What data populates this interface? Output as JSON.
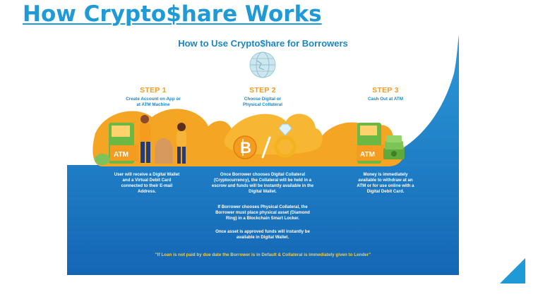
{
  "slide": {
    "title": "How Crypto$hare Works"
  },
  "infographic": {
    "title": "How to Use Crypto$hare for Borrowers",
    "steps": [
      {
        "label": "STEP 1",
        "subtitle_line1": "Create Account on App or",
        "subtitle_line2": "at ATM Machine",
        "description": [
          "User will receive a Digital Wallet",
          "and a Virtual Debit Card",
          "connected to their E-mail",
          "Address."
        ],
        "atm_label": "ATM"
      },
      {
        "label": "STEP 2",
        "subtitle_line1": "Choose Digital or",
        "subtitle_line2": "Physical Collateral",
        "description_a": [
          "Once Borrower chooses Digital Collateral",
          "(Cryptocurrency), the Collateral will be held in a",
          "escrow and funds will be instantly available in the",
          "Digital Wallet."
        ],
        "description_b": [
          "If Borrower chooses Physical Collateral, the",
          "Borrower must place physical asset (Diamond",
          "Ring) in a Blockchain Smart Locker."
        ],
        "description_c": [
          "Once asset is approved funds will instantly be",
          "available in Digital Wallet."
        ]
      },
      {
        "label": "STEP 3",
        "subtitle_line1": "Cash Out at ATM",
        "description": [
          "Money is immediately",
          "available to withdraw at an",
          "ATM or for use online with a",
          "Digital Debit Card."
        ],
        "atm_label": "ATM"
      }
    ],
    "footnote": "\"If Loan is not paid by due date the Borrower is in Default & Collateral is immediately given to Lender\"",
    "colors": {
      "blue": "#1a86c9",
      "orange": "#f39c1f",
      "yellow": "#f3cf4a",
      "title_blue": "#1f9ad6"
    },
    "icons": [
      "globe-logo-icon",
      "atm-icon",
      "person-icon",
      "bitcoin-icon",
      "diamond-ring-icon",
      "money-stack-icon"
    ]
  }
}
